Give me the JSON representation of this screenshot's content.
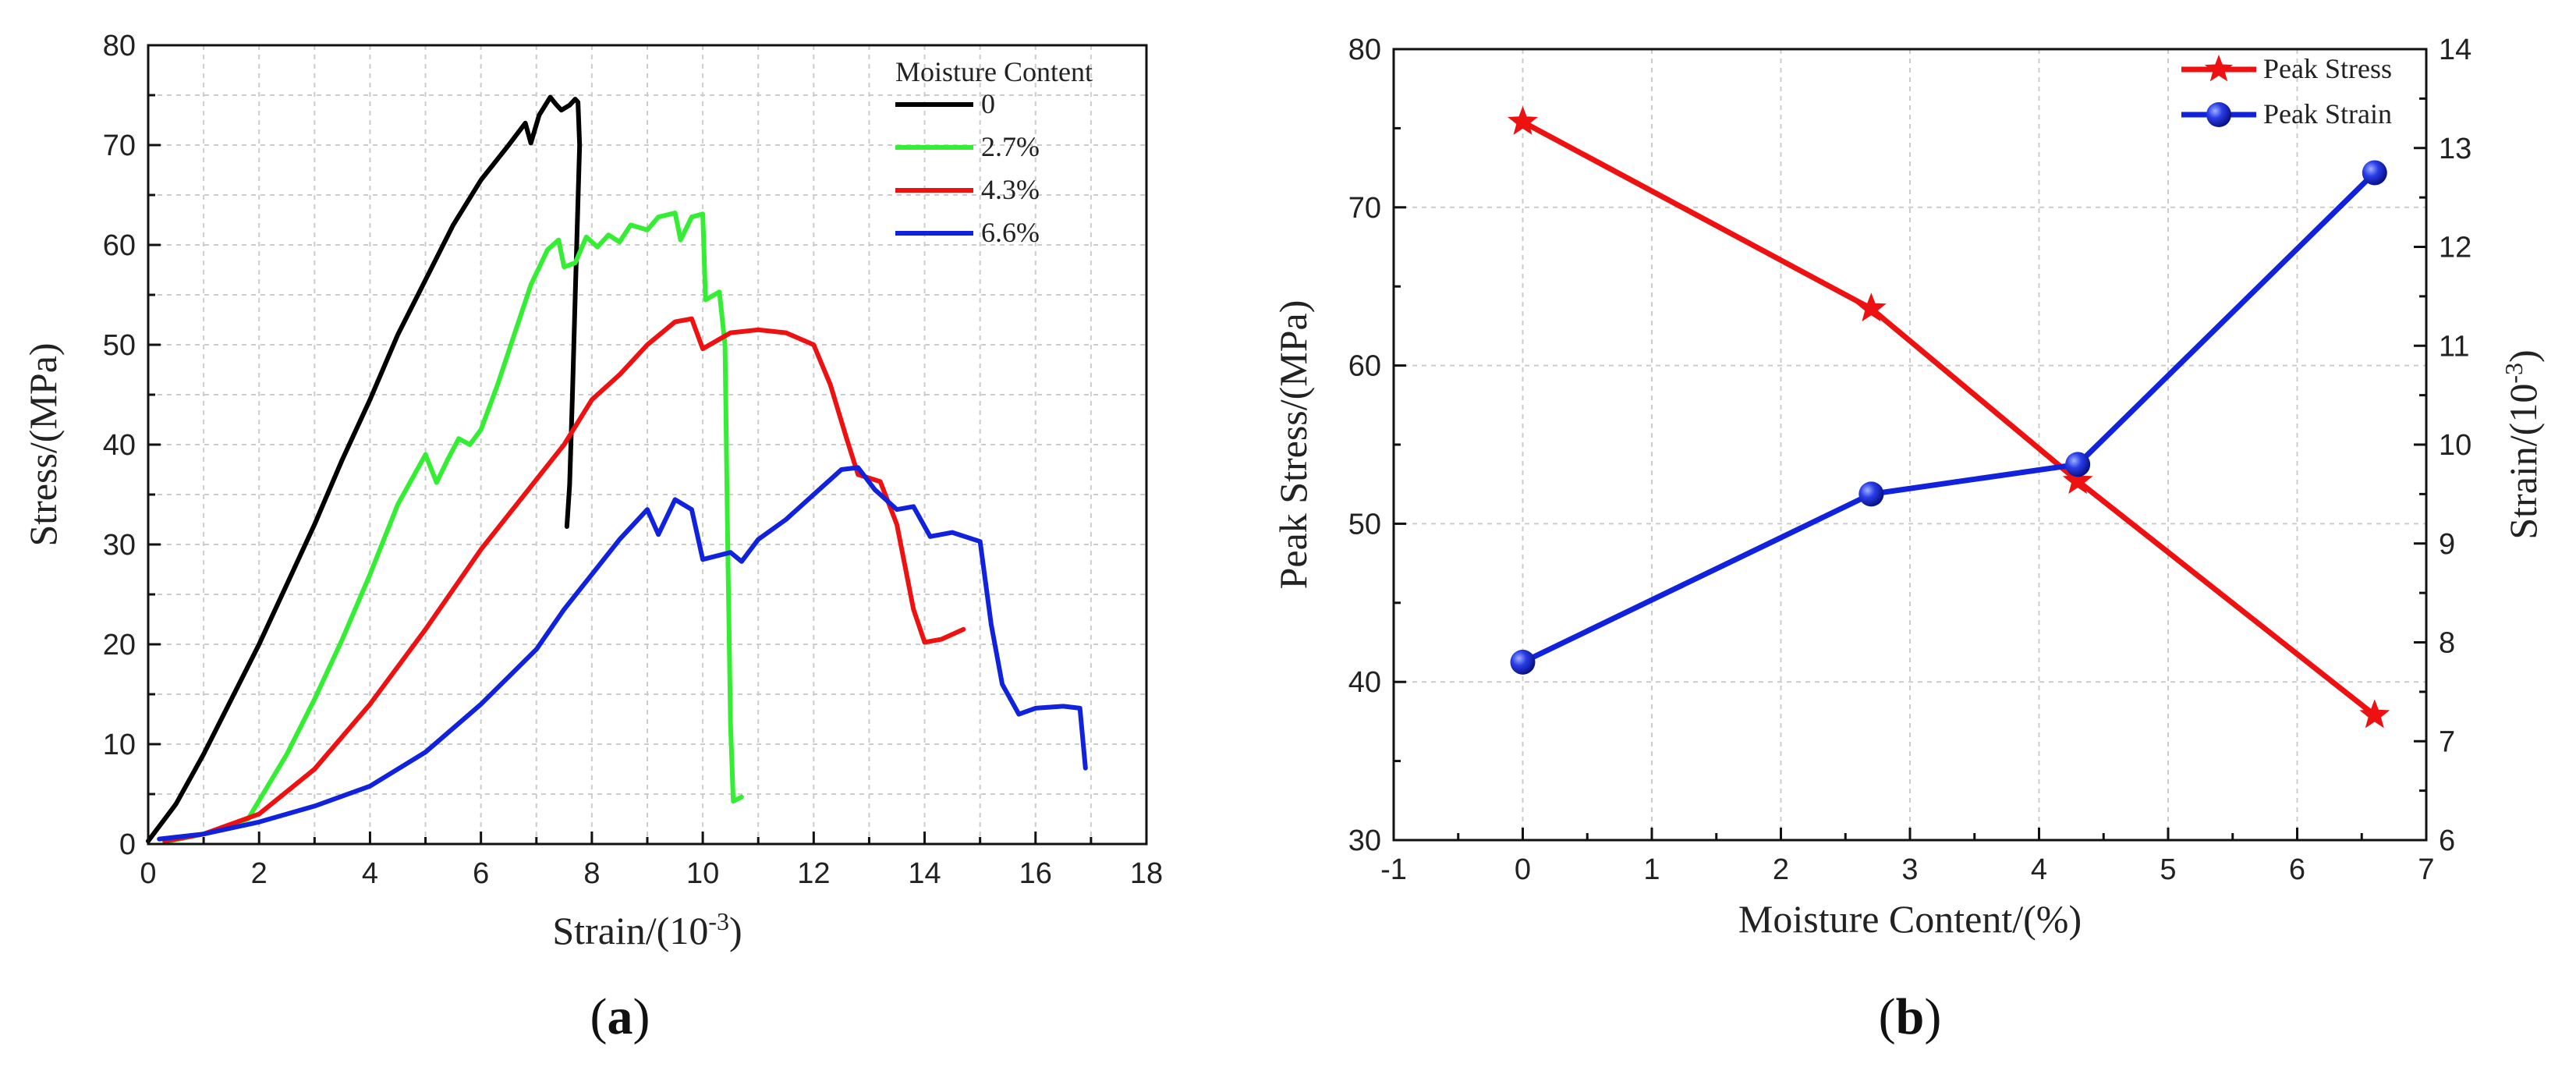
{
  "chart_data": [
    {
      "panel_label": "a",
      "type": "line",
      "xlabel": "Strain/(10",
      "xlabel_sup": "-3",
      "xlabel_close": ")",
      "ylabel": "Stress/(MPa)",
      "xlim": [
        0,
        18
      ],
      "ylim": [
        0,
        80
      ],
      "xticks": [
        "0",
        "2",
        "4",
        "6",
        "8",
        "10",
        "12",
        "14",
        "16",
        "18"
      ],
      "yticks": [
        "0",
        "10",
        "20",
        "30",
        "40",
        "50",
        "60",
        "70",
        "80"
      ],
      "grid": true,
      "legend_title": "Moisture Content",
      "legend_position": "top-right",
      "series": [
        {
          "name": "0",
          "color": "#000000",
          "points": [
            [
              0,
              0.3
            ],
            [
              0.5,
              4
            ],
            [
              1,
              9
            ],
            [
              1.5,
              14.5
            ],
            [
              2,
              20
            ],
            [
              2.5,
              26
            ],
            [
              3,
              32
            ],
            [
              3.5,
              38.5
            ],
            [
              4,
              44.5
            ],
            [
              4.5,
              51
            ],
            [
              5,
              56.5
            ],
            [
              5.5,
              62
            ],
            [
              6,
              66.5
            ],
            [
              6.5,
              70
            ],
            [
              6.8,
              72.2
            ],
            [
              6.9,
              70.2
            ],
            [
              7.05,
              73
            ],
            [
              7.25,
              74.8
            ],
            [
              7.35,
              74.1
            ],
            [
              7.45,
              73.5
            ],
            [
              7.6,
              74
            ],
            [
              7.7,
              74.6
            ],
            [
              7.75,
              74.3
            ],
            [
              7.78,
              70
            ],
            [
              7.7,
              55
            ],
            [
              7.65,
              45
            ],
            [
              7.6,
              36
            ],
            [
              7.55,
              31.8
            ]
          ]
        },
        {
          "name": "2.7%",
          "color": "#33ee33",
          "points": [
            [
              0.3,
              0.2
            ],
            [
              1,
              1
            ],
            [
              1.8,
              2.5
            ],
            [
              2.5,
              9
            ],
            [
              3,
              14.5
            ],
            [
              3.5,
              20.5
            ],
            [
              4,
              27
            ],
            [
              4.5,
              34
            ],
            [
              4.8,
              37
            ],
            [
              5,
              39
            ],
            [
              5.2,
              36.2
            ],
            [
              5.4,
              38.5
            ],
            [
              5.6,
              40.6
            ],
            [
              5.8,
              40
            ],
            [
              6,
              41.5
            ],
            [
              6.3,
              46
            ],
            [
              6.6,
              51
            ],
            [
              6.9,
              56
            ],
            [
              7.2,
              59.5
            ],
            [
              7.4,
              60.5
            ],
            [
              7.5,
              57.8
            ],
            [
              7.7,
              58.2
            ],
            [
              7.9,
              60.8
            ],
            [
              8.1,
              59.8
            ],
            [
              8.3,
              61
            ],
            [
              8.5,
              60.3
            ],
            [
              8.7,
              62
            ],
            [
              9,
              61.5
            ],
            [
              9.2,
              62.8
            ],
            [
              9.5,
              63.2
            ],
            [
              9.6,
              60.5
            ],
            [
              9.8,
              62.8
            ],
            [
              10,
              63.1
            ],
            [
              10.05,
              54.5
            ],
            [
              10.3,
              55.3
            ],
            [
              10.4,
              50
            ],
            [
              10.45,
              30
            ],
            [
              10.5,
              12
            ],
            [
              10.55,
              4.3
            ],
            [
              10.7,
              4.7
            ]
          ]
        },
        {
          "name": "4.3%",
          "color": "#ee1111",
          "points": [
            [
              0.3,
              0.3
            ],
            [
              1,
              1
            ],
            [
              2,
              3
            ],
            [
              3,
              7.5
            ],
            [
              4,
              14
            ],
            [
              5,
              21.5
            ],
            [
              6,
              29.5
            ],
            [
              7,
              36.5
            ],
            [
              7.5,
              40
            ],
            [
              8,
              44.5
            ],
            [
              8.5,
              47
            ],
            [
              9,
              50
            ],
            [
              9.5,
              52.3
            ],
            [
              9.8,
              52.6
            ],
            [
              10,
              49.6
            ],
            [
              10.5,
              51.2
            ],
            [
              11,
              51.5
            ],
            [
              11.5,
              51.2
            ],
            [
              12,
              50
            ],
            [
              12.3,
              46
            ],
            [
              12.6,
              40.5
            ],
            [
              12.8,
              37
            ],
            [
              13.2,
              36.3
            ],
            [
              13.5,
              32
            ],
            [
              13.8,
              23.5
            ],
            [
              14,
              20.2
            ],
            [
              14.3,
              20.5
            ],
            [
              14.7,
              21.5
            ]
          ]
        },
        {
          "name": "6.6%",
          "color": "#1122dd",
          "points": [
            [
              0.2,
              0.5
            ],
            [
              1,
              1
            ],
            [
              2,
              2.2
            ],
            [
              3,
              3.8
            ],
            [
              4,
              5.8
            ],
            [
              5,
              9.2
            ],
            [
              6,
              14
            ],
            [
              7,
              19.5
            ],
            [
              7.5,
              23.5
            ],
            [
              8,
              27
            ],
            [
              8.5,
              30.5
            ],
            [
              9,
              33.5
            ],
            [
              9.2,
              31
            ],
            [
              9.5,
              34.5
            ],
            [
              9.8,
              33.5
            ],
            [
              10,
              28.5
            ],
            [
              10.5,
              29.2
            ],
            [
              10.7,
              28.3
            ],
            [
              11,
              30.5
            ],
            [
              11.5,
              32.5
            ],
            [
              12,
              35
            ],
            [
              12.5,
              37.5
            ],
            [
              12.8,
              37.7
            ],
            [
              13.1,
              35.5
            ],
            [
              13.5,
              33.5
            ],
            [
              13.8,
              33.8
            ],
            [
              14.1,
              30.8
            ],
            [
              14.5,
              31.2
            ],
            [
              15,
              30.3
            ],
            [
              15.2,
              22
            ],
            [
              15.4,
              16
            ],
            [
              15.7,
              13
            ],
            [
              16,
              13.6
            ],
            [
              16.5,
              13.8
            ],
            [
              16.8,
              13.6
            ],
            [
              16.9,
              7.6
            ]
          ]
        }
      ]
    },
    {
      "panel_label": "b",
      "type": "line",
      "xlabel": "Moisture Content/(%)",
      "ylabel": "Peak Stress/(MPa)",
      "y2label": "Strain/(10",
      "y2label_sup": "-3",
      "y2label_close": ")",
      "xlim": [
        -1,
        7
      ],
      "ylim": [
        30,
        80
      ],
      "y2lim": [
        6,
        14
      ],
      "xticks": [
        "-1",
        "0",
        "1",
        "2",
        "3",
        "4",
        "5",
        "6",
        "7"
      ],
      "yticks": [
        "30",
        "40",
        "50",
        "60",
        "70",
        "80"
      ],
      "y2ticks": [
        "6",
        "7",
        "8",
        "9",
        "10",
        "11",
        "12",
        "13",
        "14"
      ],
      "grid": true,
      "legend_position": "top-right",
      "x": [
        0,
        2.7,
        4.3,
        6.6
      ],
      "series": [
        {
          "name": "Peak Stress",
          "axis": "left",
          "marker": "star",
          "color": "#ee1111",
          "values": [
            75.4,
            63.6,
            52.7,
            37.9
          ]
        },
        {
          "name": "Peak Strain",
          "axis": "right",
          "marker": "sphere",
          "color": "#1122dd",
          "values": [
            7.8,
            9.5,
            9.8,
            12.75
          ]
        }
      ]
    }
  ]
}
